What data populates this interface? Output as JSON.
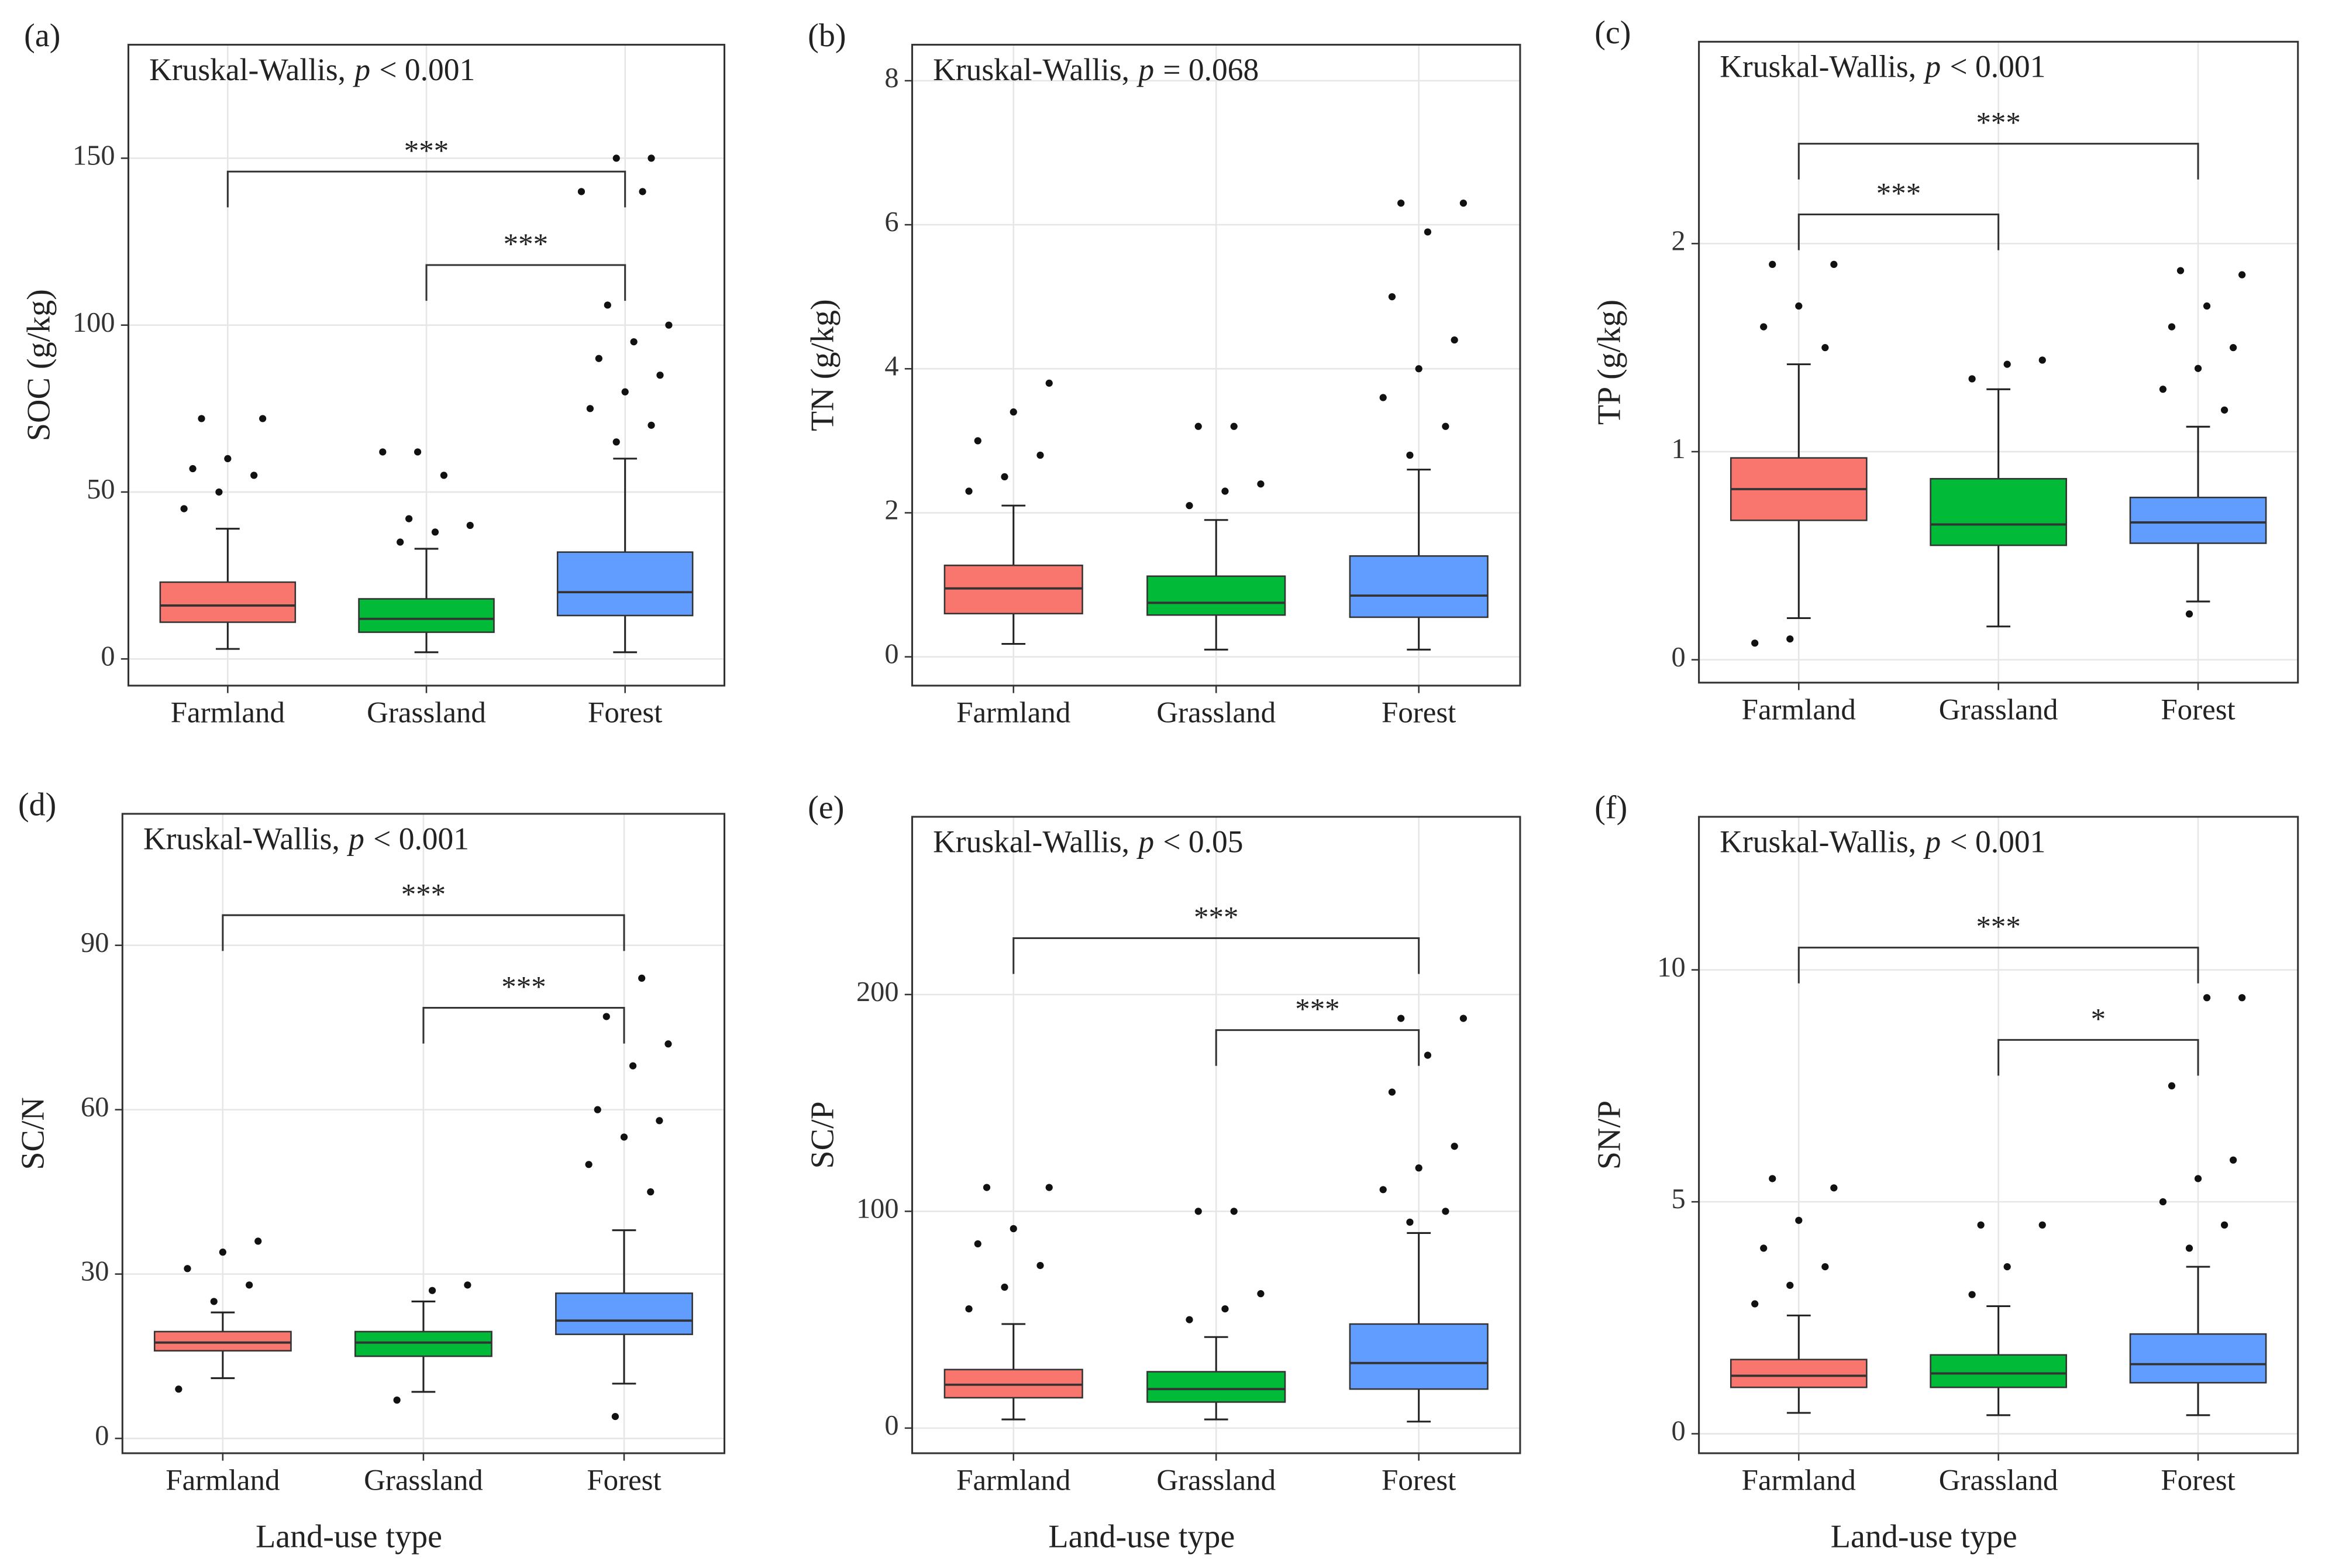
{
  "chart_data": [
    {
      "type": "box",
      "label": "(a)",
      "annotation": {
        "test": "Kruskal-Wallis,",
        "p_symbol": "p",
        "p_text": "< 0.001"
      },
      "y_label": "SOC (g/kg)",
      "categories": [
        "Farmland",
        "Grassland",
        "Forest"
      ],
      "colors": [
        "#f8766d",
        "#00ba38",
        "#619cff"
      ],
      "ylim": [
        -8,
        184
      ],
      "yticks": [
        0,
        50,
        100,
        150
      ],
      "grid": true,
      "boxes": [
        {
          "whislo": 3,
          "q1": 11,
          "median": 16,
          "q3": 23,
          "whishi": 39,
          "outliers": [
            45,
            50,
            55,
            57,
            60,
            72,
            72
          ]
        },
        {
          "whislo": 2,
          "q1": 8,
          "median": 12,
          "q3": 18,
          "whishi": 33,
          "outliers": [
            35,
            38,
            40,
            42,
            55,
            62,
            62
          ]
        },
        {
          "whislo": 2,
          "q1": 13,
          "median": 20,
          "q3": 32,
          "whishi": 60,
          "outliers": [
            65,
            70,
            75,
            80,
            85,
            90,
            95,
            100,
            106,
            140,
            140,
            150,
            150
          ]
        }
      ],
      "brackets": [
        {
          "from": 0,
          "to": 2,
          "y": 146,
          "label": "***"
        },
        {
          "from": 1,
          "to": 2,
          "y": 118,
          "label": "***"
        }
      ]
    },
    {
      "type": "box",
      "label": "(b)",
      "annotation": {
        "test": "Kruskal-Wallis,",
        "p_symbol": "p",
        "p_text": "= 0.068"
      },
      "y_label": "TN (g/kg)",
      "categories": [
        "Farmland",
        "Grassland",
        "Forest"
      ],
      "colors": [
        "#f8766d",
        "#00ba38",
        "#619cff"
      ],
      "ylim": [
        -0.4,
        8.5
      ],
      "yticks": [
        0,
        2,
        4,
        6,
        8
      ],
      "grid": true,
      "boxes": [
        {
          "whislo": 0.18,
          "q1": 0.6,
          "median": 0.95,
          "q3": 1.27,
          "whishi": 2.1,
          "outliers": [
            2.3,
            2.5,
            2.8,
            3.0,
            3.4,
            3.8
          ]
        },
        {
          "whislo": 0.1,
          "q1": 0.58,
          "median": 0.75,
          "q3": 1.12,
          "whishi": 1.9,
          "outliers": [
            2.1,
            2.3,
            2.4,
            3.2,
            3.2
          ]
        },
        {
          "whislo": 0.1,
          "q1": 0.55,
          "median": 0.85,
          "q3": 1.4,
          "whishi": 2.6,
          "outliers": [
            2.8,
            3.2,
            3.6,
            4.0,
            4.4,
            5.0,
            5.9,
            6.3,
            6.3
          ]
        }
      ],
      "brackets": []
    },
    {
      "type": "box",
      "label": "(c)",
      "annotation": {
        "test": "Kruskal-Wallis,",
        "p_symbol": "p",
        "p_text": "< 0.001"
      },
      "y_label": "TP (g/kg)",
      "categories": [
        "Farmland",
        "Grassland",
        "Forest"
      ],
      "colors": [
        "#f8766d",
        "#00ba38",
        "#619cff"
      ],
      "ylim": [
        -0.11,
        2.97
      ],
      "yticks": [
        0,
        1,
        2
      ],
      "grid": true,
      "boxes": [
        {
          "whislo": 0.2,
          "q1": 0.67,
          "median": 0.82,
          "q3": 0.97,
          "whishi": 1.42,
          "outliers": [
            0.08,
            0.1,
            1.5,
            1.6,
            1.7,
            1.9,
            1.9
          ]
        },
        {
          "whislo": 0.16,
          "q1": 0.55,
          "median": 0.65,
          "q3": 0.87,
          "whishi": 1.3,
          "outliers": [
            1.35,
            1.42,
            1.44
          ]
        },
        {
          "whislo": 0.28,
          "q1": 0.56,
          "median": 0.66,
          "q3": 0.78,
          "whishi": 1.12,
          "outliers": [
            0.22,
            1.2,
            1.3,
            1.4,
            1.5,
            1.6,
            1.7,
            1.85,
            1.87
          ]
        }
      ],
      "brackets": [
        {
          "from": 0,
          "to": 2,
          "y": 2.48,
          "label": "***"
        },
        {
          "from": 0,
          "to": 1,
          "y": 2.14,
          "label": "***"
        }
      ]
    },
    {
      "type": "box",
      "label": "(d)",
      "annotation": {
        "test": "Kruskal-Wallis,",
        "p_symbol": "p",
        "p_text": "< 0.001"
      },
      "y_label": "SC/N",
      "x_label": "Land-use type",
      "categories": [
        "Farmland",
        "Grassland",
        "Forest"
      ],
      "colors": [
        "#f8766d",
        "#00ba38",
        "#619cff"
      ],
      "ylim": [
        -2.7,
        114
      ],
      "yticks": [
        0,
        30,
        60,
        90
      ],
      "grid": true,
      "boxes": [
        {
          "whislo": 11,
          "q1": 16,
          "median": 17.5,
          "q3": 19.5,
          "whishi": 23,
          "outliers": [
            9,
            25,
            28,
            31,
            34,
            36
          ]
        },
        {
          "whislo": 8.5,
          "q1": 15,
          "median": 17.5,
          "q3": 19.5,
          "whishi": 25,
          "outliers": [
            7,
            27,
            28
          ]
        },
        {
          "whislo": 10,
          "q1": 19,
          "median": 21.5,
          "q3": 26.5,
          "whishi": 38,
          "outliers": [
            4,
            45,
            50,
            55,
            58,
            60,
            68,
            72,
            77,
            84
          ]
        }
      ],
      "brackets": [
        {
          "from": 0,
          "to": 2,
          "y": 95.5,
          "label": "***"
        },
        {
          "from": 1,
          "to": 2,
          "y": 78.6,
          "label": "***"
        }
      ]
    },
    {
      "type": "box",
      "label": "(e)",
      "annotation": {
        "test": "Kruskal-Wallis,",
        "p_symbol": "p",
        "p_text": "< 0.05"
      },
      "y_label": "SC/P",
      "x_label": "Land-use type",
      "categories": [
        "Farmland",
        "Grassland",
        "Forest"
      ],
      "colors": [
        "#f8766d",
        "#00ba38",
        "#619cff"
      ],
      "ylim": [
        -11.6,
        282
      ],
      "yticks": [
        0,
        100,
        200
      ],
      "grid": true,
      "boxes": [
        {
          "whislo": 4,
          "q1": 14,
          "median": 20,
          "q3": 27,
          "whishi": 48,
          "outliers": [
            55,
            65,
            75,
            85,
            92,
            111,
            111
          ]
        },
        {
          "whislo": 4,
          "q1": 12,
          "median": 18,
          "q3": 26,
          "whishi": 42,
          "outliers": [
            50,
            55,
            62,
            100,
            100
          ]
        },
        {
          "whislo": 3,
          "q1": 18,
          "median": 30,
          "q3": 48,
          "whishi": 90,
          "outliers": [
            95,
            100,
            110,
            120,
            130,
            155,
            172,
            189,
            189
          ]
        }
      ],
      "brackets": [
        {
          "from": 0,
          "to": 2,
          "y": 226,
          "label": "***"
        },
        {
          "from": 1,
          "to": 2,
          "y": 183.6,
          "label": "***"
        }
      ]
    },
    {
      "type": "box",
      "label": "(f)",
      "annotation": {
        "test": "Kruskal-Wallis,",
        "p_symbol": "p",
        "p_text": "< 0.001"
      },
      "y_label": "SN/P",
      "x_label": "Land-use type",
      "categories": [
        "Farmland",
        "Grassland",
        "Forest"
      ],
      "colors": [
        "#f8766d",
        "#00ba38",
        "#619cff"
      ],
      "ylim": [
        -0.42,
        13.3
      ],
      "yticks": [
        0,
        5,
        10
      ],
      "grid": true,
      "boxes": [
        {
          "whislo": 0.45,
          "q1": 1.0,
          "median": 1.25,
          "q3": 1.6,
          "whishi": 2.55,
          "outliers": [
            2.8,
            3.2,
            3.6,
            4.0,
            4.6,
            5.3,
            5.5
          ]
        },
        {
          "whislo": 0.4,
          "q1": 1.0,
          "median": 1.3,
          "q3": 1.7,
          "whishi": 2.75,
          "outliers": [
            3.0,
            3.6,
            4.5,
            4.5
          ]
        },
        {
          "whislo": 0.4,
          "q1": 1.1,
          "median": 1.5,
          "q3": 2.15,
          "whishi": 3.6,
          "outliers": [
            4,
            4.5,
            5,
            5.5,
            5.9,
            7.5,
            9.4,
            9.4
          ]
        }
      ],
      "brackets": [
        {
          "from": 0,
          "to": 2,
          "y": 10.48,
          "label": "***"
        },
        {
          "from": 1,
          "to": 2,
          "y": 8.49,
          "label": "*"
        }
      ]
    }
  ]
}
